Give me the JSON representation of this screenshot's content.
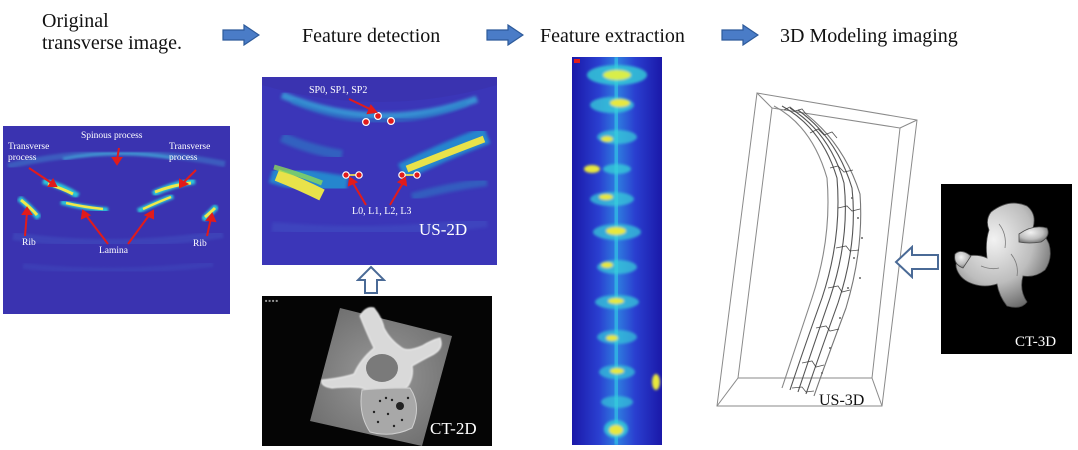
{
  "steps": {
    "original": "Original\ntransverse image.",
    "original_l1": "Original",
    "original_l2": "transverse image.",
    "detection": "Feature detection",
    "extraction": "Feature extraction",
    "modeling": "3D Modeling imaging"
  },
  "transverse_panel": {
    "spinous": "Spinous process",
    "transverse_left_l1": "Transverse",
    "transverse_left_l2": "process",
    "transverse_right_l1": "Transverse",
    "transverse_right_l2": "process",
    "rib_left": "Rib",
    "lamina": "Lamina",
    "rib_right": "Rib"
  },
  "us2d_panel": {
    "sp_points": "SP0, SP1, SP2",
    "l_points": "L0, L1, L2, L3",
    "label": "US-2D"
  },
  "ct2d_panel": {
    "label": "CT-2D"
  },
  "us3d_panel": {
    "label": "US-3D"
  },
  "ct3d_panel": {
    "label": "CT-3D"
  },
  "colors": {
    "ultrasound_bg": "#3a33b0",
    "annotation": "#e11b1b",
    "flow_arrow": "#4a7cc7"
  }
}
